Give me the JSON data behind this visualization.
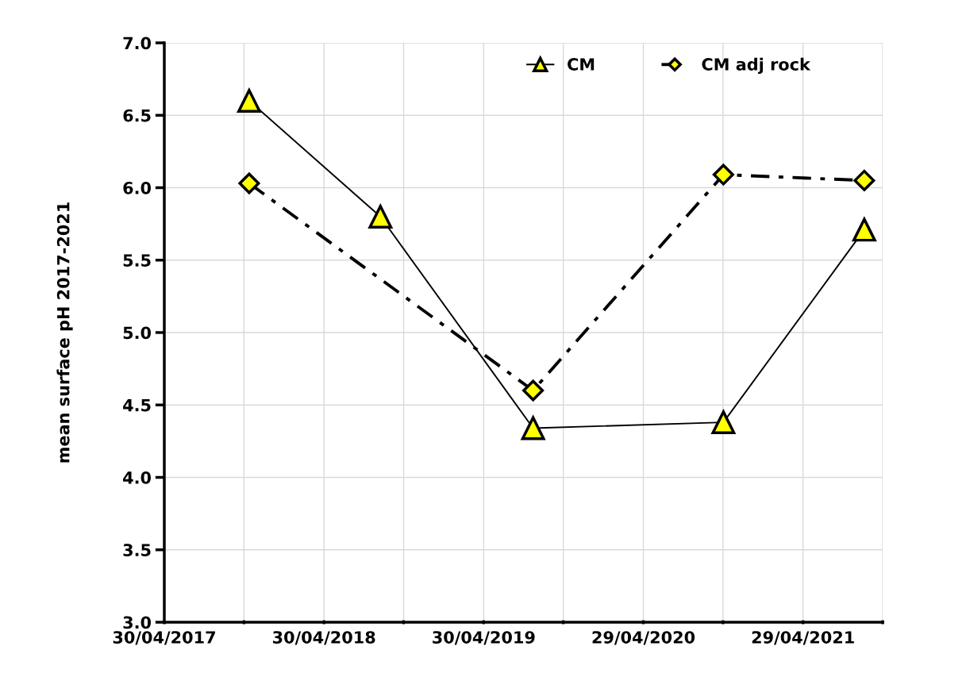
{
  "chart_data": {
    "type": "line",
    "ylabel": "mean surface pH 2017-2021",
    "series": [
      {
        "name": "CM",
        "color": "#ffff00",
        "marker": "triangle",
        "line_style": "solid",
        "x": [
          "2017-11-10",
          "2018-09-06",
          "2019-08-21",
          "2020-10-29",
          "2021-09-16"
        ],
        "values": [
          6.6,
          5.8,
          4.34,
          4.38,
          5.71
        ]
      },
      {
        "name": "CM adj rock",
        "color": "#ffff00",
        "marker": "diamond",
        "line_style": "dashdot",
        "x": [
          "2017-11-10",
          "2019-08-21",
          "2020-10-29",
          "2021-09-16"
        ],
        "values": [
          6.03,
          4.6,
          6.09,
          6.05
        ]
      }
    ],
    "xlim": [
      "2017-04-30",
      "2021-10-28"
    ],
    "xticks": [
      {
        "value": "2017-04-30",
        "label": "30/04/2017"
      },
      {
        "value": "2017-10-29",
        "label": null
      },
      {
        "value": "2018-04-30",
        "label": "30/04/2018"
      },
      {
        "value": "2018-10-29",
        "label": null
      },
      {
        "value": "2019-04-30",
        "label": "30/04/2019"
      },
      {
        "value": "2019-10-29",
        "label": null
      },
      {
        "value": "2020-04-29",
        "label": "29/04/2020"
      },
      {
        "value": "2020-10-28",
        "label": null
      },
      {
        "value": "2021-04-29",
        "label": "29/04/2021"
      },
      {
        "value": "2021-10-28",
        "label": null
      }
    ],
    "ylim": [
      3.0,
      7.0
    ],
    "yticks": [
      {
        "value": 3.0,
        "label": "3.0"
      },
      {
        "value": 3.5,
        "label": "3.5"
      },
      {
        "value": 4.0,
        "label": "4.0"
      },
      {
        "value": 4.5,
        "label": "4.5"
      },
      {
        "value": 5.0,
        "label": "5.0"
      },
      {
        "value": 5.5,
        "label": "5.5"
      },
      {
        "value": 6.0,
        "label": "6.0"
      },
      {
        "value": 6.5,
        "label": "6.5"
      },
      {
        "value": 7.0,
        "label": "7.0"
      }
    ],
    "grid": true,
    "legend": "top right"
  }
}
